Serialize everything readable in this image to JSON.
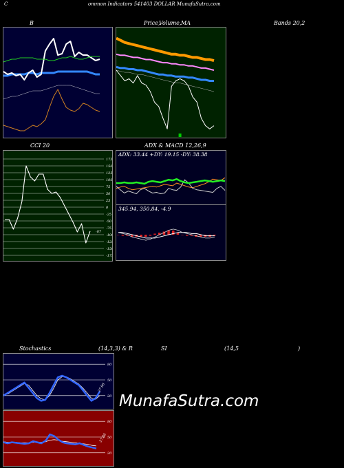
{
  "header": {
    "left": "C",
    "center": "ommon  Indicators 541403 DOLLAR MunafaSutra.com"
  },
  "titles": {
    "b": "B",
    "price_1": "Price,",
    "price_2": "Volume,",
    "price_3": "MA",
    "bands": "Bands 20,2",
    "cci": "CCI 20",
    "adx_macd": "ADX  & MACD 12,26,9",
    "stoch_1": "Stochastics",
    "stoch_2": "(14,3,3) & R",
    "stoch_3": "SI",
    "stoch_4": "(14,5",
    "stoch_5": ")"
  },
  "adx_text": "ADX: 33.44  +DY: 19.15 -DY: 38.38",
  "macd_text": "345.94,  350.84,  -4.9",
  "cci_last_label": "-87",
  "stoch_last_label": "27.96",
  "rsi_last_label": "27.86",
  "watermark": "MunafaSutra.com",
  "colors": {
    "bands_bg": "#000033",
    "price_bg": "#002200",
    "cci_bg": "#002200",
    "adx_bg": "#000022",
    "stoch_bg": "#000033",
    "rsi_bg": "#880000"
  },
  "chart_data": [
    {
      "type": "line",
      "title": "B",
      "series": [
        {
          "values": [
            9,
            8,
            7,
            6,
            5,
            5,
            7,
            9,
            8,
            10,
            13,
            22,
            30,
            35,
            28,
            22,
            20,
            19,
            21,
            25,
            24,
            22,
            20,
            19
          ]
        },
        {
          "values": [
            28,
            29,
            30,
            30,
            31,
            32,
            33,
            34,
            34,
            34,
            35,
            36,
            37,
            38,
            38,
            38,
            38,
            37,
            36,
            35,
            34,
            33,
            32,
            32
          ]
        },
        {
          "values": [
            48,
            46,
            47,
            45,
            46,
            42,
            47,
            49,
            44,
            46,
            63,
            68,
            72,
            60,
            61,
            68,
            70,
            59,
            62,
            60,
            60,
            58,
            56,
            57
          ]
        },
        {
          "values": [
            45,
            45,
            46,
            46,
            46,
            46,
            47,
            47,
            46,
            47,
            47,
            47,
            47,
            48,
            48,
            48,
            48,
            48,
            48,
            48,
            48,
            47,
            46,
            46
          ]
        },
        {
          "values": [
            55,
            56,
            57,
            57,
            58,
            58,
            58,
            58,
            57,
            57,
            57,
            56,
            56,
            57,
            58,
            58,
            59,
            58,
            57,
            57,
            58,
            59,
            59,
            59
          ]
        }
      ]
    },
    {
      "type": "line",
      "title": "Price, Volume, MA",
      "series": [
        {
          "values": [
            60,
            55,
            50,
            52,
            48,
            55,
            48,
            46,
            40,
            30,
            26,
            15,
            5,
            45,
            50,
            52,
            50,
            45,
            35,
            30,
            15,
            8,
            5,
            8
          ]
        },
        {
          "values": [
            60,
            59,
            58,
            58,
            57,
            56,
            56,
            55,
            54,
            53,
            52,
            51,
            50,
            49,
            48,
            48,
            47,
            46,
            45,
            44,
            43,
            42,
            41,
            40
          ]
        },
        {
          "values": [
            75,
            74,
            74,
            73,
            72,
            72,
            71,
            70,
            70,
            69,
            68,
            67,
            67,
            66,
            66,
            65,
            65,
            64,
            64,
            63,
            62,
            62,
            61,
            60
          ]
        },
        {
          "values": [
            90,
            88,
            86,
            85,
            84,
            83,
            82,
            81,
            80,
            79,
            78,
            77,
            76,
            75,
            75,
            74,
            74,
            73,
            72,
            72,
            71,
            70,
            70,
            69
          ]
        },
        {
          "values": [
            63,
            62,
            62,
            61,
            61,
            60,
            60,
            59,
            58,
            57,
            56,
            56,
            55,
            55,
            54,
            54,
            54,
            53,
            53,
            52,
            51,
            51,
            50,
            50
          ]
        }
      ],
      "volume": [
        0,
        0,
        0,
        0,
        0,
        0,
        0,
        0,
        0,
        0,
        0,
        0,
        0,
        0,
        0,
        100,
        0,
        0,
        0,
        0,
        0,
        0,
        0,
        0
      ]
    },
    {
      "type": "line",
      "title": "CCI 20",
      "yticks": [
        175,
        150,
        125,
        100,
        75,
        50,
        25,
        0,
        -25,
        -50,
        -75,
        -100,
        -125,
        -150,
        -175
      ],
      "ylim": [
        -175,
        175
      ],
      "values": [
        -45,
        -45,
        -80,
        -40,
        20,
        150,
        110,
        95,
        120,
        120,
        65,
        50,
        55,
        35,
        5,
        -25,
        -55,
        -90,
        -60,
        -130,
        -87
      ]
    },
    {
      "type": "line",
      "title": "ADX & MACD 12,26,9",
      "series": [
        {
          "name": "ADX",
          "values": [
            30,
            30,
            31,
            30,
            30,
            31,
            30,
            29,
            32,
            33,
            32,
            31,
            33,
            35,
            34,
            36,
            33,
            31,
            30,
            31,
            32,
            33,
            34,
            33,
            32,
            33,
            34,
            33
          ]
        },
        {
          "name": "+DI",
          "values": [
            25,
            20,
            15,
            18,
            16,
            14,
            20,
            22,
            18,
            15,
            16,
            14,
            15,
            22,
            20,
            19,
            24,
            35,
            30,
            22,
            20,
            19,
            18,
            17,
            16,
            22,
            25,
            19
          ]
        },
        {
          "name": "-DI",
          "values": [
            22,
            24,
            25,
            22,
            20,
            21,
            22,
            23,
            24,
            25,
            24,
            26,
            28,
            27,
            26,
            30,
            28,
            26,
            24,
            23,
            25,
            27,
            29,
            32,
            36,
            35,
            34,
            38
          ]
        }
      ],
      "macd": {
        "values": [
          350,
          349,
          348,
          346,
          345,
          344,
          343,
          344,
          346,
          348,
          350,
          352,
          353,
          352,
          350,
          349,
          348,
          347,
          346,
          345,
          345,
          346
        ],
        "signal": [
          350,
          350,
          349,
          348,
          347,
          346,
          345,
          345,
          345,
          346,
          347,
          348,
          349,
          350,
          350,
          350,
          349,
          349,
          348,
          347,
          347,
          347
        ],
        "histogram": [
          0,
          -1,
          -1,
          -2,
          -2,
          -2,
          -2,
          -1,
          1,
          2,
          3,
          4,
          4,
          2,
          0,
          -1,
          -1,
          -2,
          -2,
          -2,
          -2,
          -1
        ]
      }
    },
    {
      "type": "line",
      "title": "Stochastics (14,3,3)",
      "yticks": [
        80,
        50,
        20
      ],
      "ylim": [
        0,
        100
      ],
      "series": [
        {
          "name": "%K",
          "values": [
            20,
            25,
            30,
            35,
            40,
            45,
            35,
            25,
            15,
            10,
            12,
            25,
            40,
            55,
            58,
            55,
            50,
            45,
            40,
            30,
            20,
            10,
            15,
            28
          ]
        },
        {
          "name": "%D",
          "values": [
            22,
            23,
            28,
            33,
            38,
            43,
            40,
            30,
            20,
            14,
            12,
            20,
            34,
            50,
            56,
            56,
            52,
            47,
            42,
            34,
            25,
            15,
            13,
            20
          ]
        }
      ]
    },
    {
      "type": "line",
      "title": "RSI (14,5)",
      "yticks": [
        80,
        50,
        20
      ],
      "ylim": [
        0,
        100
      ],
      "series": [
        {
          "name": "RSI",
          "values": [
            40,
            38,
            40,
            39,
            38,
            37,
            38,
            42,
            40,
            38,
            43,
            55,
            52,
            45,
            40,
            38,
            37,
            36,
            38,
            35,
            32,
            30,
            28
          ]
        },
        {
          "name": "signal",
          "values": [
            41,
            40,
            40,
            40,
            39,
            39,
            39,
            40,
            40,
            40,
            41,
            44,
            45,
            44,
            42,
            41,
            40,
            39,
            38,
            37,
            36,
            34,
            33
          ]
        }
      ]
    }
  ]
}
